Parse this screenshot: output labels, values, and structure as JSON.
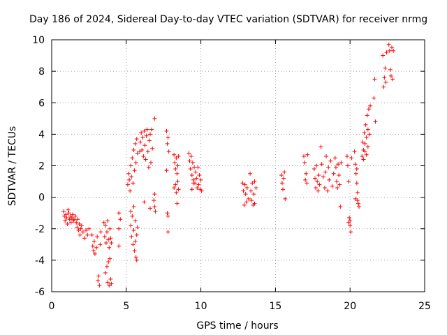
{
  "chart_data": {
    "type": "scatter",
    "title": "Day 186 of 2024, Sidereal Day-to-day VTEC variation (SDTVAR) for receiver nrmg",
    "xlabel": "GPS time / hours",
    "ylabel": "SDTVAR / TECUs",
    "xlim": [
      0,
      25
    ],
    "ylim": [
      -6,
      10
    ],
    "xticks": [
      0,
      5,
      10,
      15,
      20,
      25
    ],
    "yticks": [
      -6,
      -4,
      -2,
      0,
      2,
      4,
      6,
      8,
      10
    ],
    "grid": true,
    "marker": "+",
    "color": "#ff0000",
    "series": [
      {
        "name": "SDTVAR",
        "points": [
          [
            0.8,
            -0.9
          ],
          [
            0.85,
            -1.2
          ],
          [
            0.9,
            -1.5
          ],
          [
            0.95,
            -1.1
          ],
          [
            1.0,
            -1.3
          ],
          [
            1.05,
            -1.7
          ],
          [
            1.1,
            -0.8
          ],
          [
            1.15,
            -1.0
          ],
          [
            1.2,
            -1.4
          ],
          [
            1.25,
            -1.2
          ],
          [
            1.3,
            -1.6
          ],
          [
            1.35,
            -1.3
          ],
          [
            1.4,
            -1.1
          ],
          [
            1.45,
            -1.5
          ],
          [
            1.5,
            -1.4
          ],
          [
            1.6,
            -1.2
          ],
          [
            1.65,
            -1.6
          ],
          [
            1.7,
            -1.9
          ],
          [
            1.75,
            -1.4
          ],
          [
            1.8,
            -2.1
          ],
          [
            1.85,
            -1.7
          ],
          [
            1.9,
            -2.4
          ],
          [
            1.95,
            -2.0
          ],
          [
            2.0,
            -1.8
          ],
          [
            2.1,
            -2.2
          ],
          [
            2.2,
            -2.6
          ],
          [
            2.3,
            -2.1
          ],
          [
            2.4,
            -2.4
          ],
          [
            2.5,
            -2.0
          ],
          [
            2.7,
            -2.4
          ],
          [
            2.75,
            -3.1
          ],
          [
            2.8,
            -3.4
          ],
          [
            2.85,
            -2.8
          ],
          [
            2.9,
            -3.6
          ],
          [
            3.0,
            -3.2
          ],
          [
            3.05,
            -2.5
          ],
          [
            3.1,
            -5.3
          ],
          [
            3.15,
            -5.0
          ],
          [
            3.2,
            -5.6
          ],
          [
            3.25,
            -3.0
          ],
          [
            3.3,
            -2.2
          ],
          [
            3.5,
            -1.6
          ],
          [
            3.55,
            -2.5
          ],
          [
            3.6,
            -1.8
          ],
          [
            3.6,
            -4.8
          ],
          [
            3.65,
            -2.9
          ],
          [
            3.7,
            -2.2
          ],
          [
            3.7,
            -4.4
          ],
          [
            3.75,
            -1.5
          ],
          [
            3.75,
            -5.4
          ],
          [
            3.8,
            -2.7
          ],
          [
            3.8,
            -4.1
          ],
          [
            3.85,
            -3.2
          ],
          [
            3.85,
            -5.6
          ],
          [
            3.9,
            -2.0
          ],
          [
            3.9,
            -3.9
          ],
          [
            3.95,
            -2.6
          ],
          [
            3.95,
            -5.2
          ],
          [
            4.0,
            -2.9
          ],
          [
            4.0,
            -5.5
          ],
          [
            4.5,
            -1.0
          ],
          [
            4.5,
            -2.0
          ],
          [
            4.5,
            -3.1
          ],
          [
            4.6,
            -1.4
          ],
          [
            5.3,
            -0.9
          ],
          [
            5.3,
            -1.8
          ],
          [
            5.35,
            -2.5
          ],
          [
            5.4,
            -1.2
          ],
          [
            5.45,
            -3.0
          ],
          [
            5.5,
            -2.1
          ],
          [
            5.5,
            -0.6
          ],
          [
            5.55,
            -3.4
          ],
          [
            5.6,
            -2.8
          ],
          [
            5.6,
            -1.5
          ],
          [
            5.65,
            -3.8
          ],
          [
            5.7,
            -2.4
          ],
          [
            5.7,
            -4.0
          ],
          [
            5.75,
            -1.9
          ],
          [
            5.1,
            0.8
          ],
          [
            5.15,
            1.5
          ],
          [
            5.2,
            1.1
          ],
          [
            5.25,
            0.4
          ],
          [
            5.3,
            2.0
          ],
          [
            5.35,
            1.3
          ],
          [
            5.4,
            2.5
          ],
          [
            5.45,
            0.9
          ],
          [
            5.5,
            3.0
          ],
          [
            5.55,
            1.7
          ],
          [
            5.6,
            3.4
          ],
          [
            5.65,
            2.2
          ],
          [
            5.7,
            3.7
          ],
          [
            5.75,
            2.8
          ],
          [
            5.9,
            2.9
          ],
          [
            5.95,
            3.5
          ],
          [
            6.0,
            4.1
          ],
          [
            6.05,
            3.0
          ],
          [
            6.1,
            3.8
          ],
          [
            6.15,
            2.6
          ],
          [
            6.2,
            4.2
          ],
          [
            6.25,
            3.3
          ],
          [
            6.3,
            2.4
          ],
          [
            6.35,
            3.9
          ],
          [
            6.4,
            4.3
          ],
          [
            6.45,
            2.9
          ],
          [
            6.5,
            1.9
          ],
          [
            6.55,
            3.6
          ],
          [
            6.6,
            4.0
          ],
          [
            6.65,
            2.2
          ],
          [
            6.7,
            4.3
          ],
          [
            6.75,
            3.1
          ],
          [
            6.9,
            5.0
          ],
          [
            6.85,
            -0.2
          ],
          [
            6.9,
            -0.6
          ],
          [
            6.95,
            -0.9
          ],
          [
            6.9,
            0.2
          ],
          [
            6.6,
            -0.7
          ],
          [
            6.2,
            -0.3
          ],
          [
            7.7,
            4.2
          ],
          [
            7.75,
            3.4
          ],
          [
            7.8,
            3.8
          ],
          [
            7.85,
            2.9
          ],
          [
            7.7,
            1.7
          ],
          [
            7.75,
            -1.0
          ],
          [
            7.8,
            -1.2
          ],
          [
            7.8,
            -2.2
          ],
          [
            8.2,
            2.7
          ],
          [
            8.25,
            2.2
          ],
          [
            8.3,
            1.8
          ],
          [
            8.35,
            2.5
          ],
          [
            8.4,
            1.5
          ],
          [
            8.45,
            2.0
          ],
          [
            8.5,
            2.6
          ],
          [
            8.3,
            0.8
          ],
          [
            8.35,
            0.3
          ],
          [
            8.4,
            -0.4
          ],
          [
            8.45,
            1.0
          ],
          [
            8.5,
            0.5
          ],
          [
            8.2,
            0.6
          ],
          [
            9.2,
            2.8
          ],
          [
            9.25,
            2.3
          ],
          [
            9.3,
            1.8
          ],
          [
            9.35,
            2.6
          ],
          [
            9.4,
            1.4
          ],
          [
            9.45,
            2.2
          ],
          [
            9.5,
            1.1
          ],
          [
            9.55,
            1.9
          ],
          [
            9.6,
            0.9
          ],
          [
            9.65,
            1.6
          ],
          [
            9.7,
            1.2
          ],
          [
            9.75,
            0.6
          ],
          [
            9.8,
            1.9
          ],
          [
            9.85,
            0.8
          ],
          [
            9.9,
            1.4
          ],
          [
            9.95,
            0.5
          ],
          [
            10.0,
            1.1
          ],
          [
            10.05,
            0.4
          ],
          [
            9.4,
            0.5
          ],
          [
            9.5,
            0.9
          ],
          [
            12.8,
            0.9
          ],
          [
            12.85,
            0.4
          ],
          [
            12.9,
            -0.5
          ],
          [
            12.95,
            0.8
          ],
          [
            13.0,
            0.2
          ],
          [
            13.05,
            -0.3
          ],
          [
            13.1,
            0.6
          ],
          [
            13.2,
            -0.1
          ],
          [
            13.3,
            1.5
          ],
          [
            13.35,
            0.4
          ],
          [
            13.4,
            -0.2
          ],
          [
            13.45,
            0.9
          ],
          [
            13.5,
            -0.5
          ],
          [
            13.55,
            0.2
          ],
          [
            13.6,
            -0.4
          ],
          [
            13.7,
            0.6
          ],
          [
            13.6,
            1.0
          ],
          [
            15.4,
            1.4
          ],
          [
            15.45,
            0.9
          ],
          [
            15.5,
            0.5
          ],
          [
            15.55,
            1.2
          ],
          [
            15.6,
            1.6
          ],
          [
            15.65,
            -0.1
          ],
          [
            16.9,
            2.6
          ],
          [
            16.95,
            2.2
          ],
          [
            17.0,
            1.1
          ],
          [
            17.05,
            1.5
          ],
          [
            17.1,
            0.9
          ],
          [
            17.15,
            2.7
          ],
          [
            17.6,
            1.8
          ],
          [
            17.65,
            1.2
          ],
          [
            17.7,
            0.6
          ],
          [
            17.75,
            2.0
          ],
          [
            17.8,
            1.0
          ],
          [
            17.85,
            0.4
          ],
          [
            17.9,
            1.4
          ],
          [
            17.95,
            0.8
          ],
          [
            18.05,
            3.2
          ],
          [
            18.1,
            2.1
          ],
          [
            18.2,
            1.3
          ],
          [
            18.3,
            0.6
          ],
          [
            18.35,
            1.6
          ],
          [
            18.4,
            2.6
          ],
          [
            18.5,
            0.4
          ],
          [
            18.55,
            1.9
          ],
          [
            18.6,
            1.1
          ],
          [
            18.7,
            2.3
          ],
          [
            18.8,
            0.7
          ],
          [
            18.9,
            1.5
          ],
          [
            19.0,
            2.5
          ],
          [
            19.05,
            1.9
          ],
          [
            19.1,
            1.0
          ],
          [
            19.15,
            0.6
          ],
          [
            19.2,
            2.1
          ],
          [
            19.25,
            1.4
          ],
          [
            19.3,
            0.8
          ],
          [
            19.35,
            -0.6
          ],
          [
            19.4,
            2.2
          ],
          [
            19.8,
            2.6
          ],
          [
            19.85,
            2.0
          ],
          [
            19.9,
            1.0
          ],
          [
            19.95,
            -1.3
          ],
          [
            20.0,
            -1.8
          ],
          [
            20.05,
            -2.2
          ],
          [
            20.0,
            -1.5
          ],
          [
            20.1,
            2.5
          ],
          [
            19.9,
            -1.6
          ],
          [
            20.3,
            2.9
          ],
          [
            20.35,
            2.1
          ],
          [
            20.4,
            1.5
          ],
          [
            20.45,
            0.9
          ],
          [
            20.5,
            0.3
          ],
          [
            20.55,
            -0.4
          ],
          [
            20.6,
            -0.6
          ],
          [
            20.5,
            -0.2
          ],
          [
            20.45,
            1.8
          ],
          [
            20.35,
            -0.1
          ],
          [
            20.8,
            2.6
          ],
          [
            20.85,
            3.5
          ],
          [
            20.9,
            3.0
          ],
          [
            20.95,
            4.1
          ],
          [
            21.0,
            3.4
          ],
          [
            21.05,
            4.6
          ],
          [
            21.1,
            3.8
          ],
          [
            21.15,
            5.2
          ],
          [
            21.2,
            4.3
          ],
          [
            21.25,
            5.6
          ],
          [
            21.3,
            4.0
          ],
          [
            21.35,
            5.8
          ],
          [
            20.9,
            2.4
          ],
          [
            21.0,
            2.9
          ],
          [
            21.1,
            2.7
          ],
          [
            21.2,
            3.2
          ],
          [
            21.6,
            6.3
          ],
          [
            21.7,
            4.8
          ],
          [
            21.65,
            7.5
          ],
          [
            22.2,
            9.0
          ],
          [
            22.25,
            7.0
          ],
          [
            22.3,
            7.6
          ],
          [
            22.35,
            8.2
          ],
          [
            22.4,
            7.3
          ],
          [
            22.45,
            9.2
          ],
          [
            22.6,
            9.7
          ],
          [
            22.65,
            9.3
          ],
          [
            22.7,
            8.1
          ],
          [
            22.75,
            7.7
          ],
          [
            22.8,
            9.5
          ],
          [
            22.85,
            7.5
          ],
          [
            22.9,
            9.3
          ]
        ]
      }
    ]
  }
}
